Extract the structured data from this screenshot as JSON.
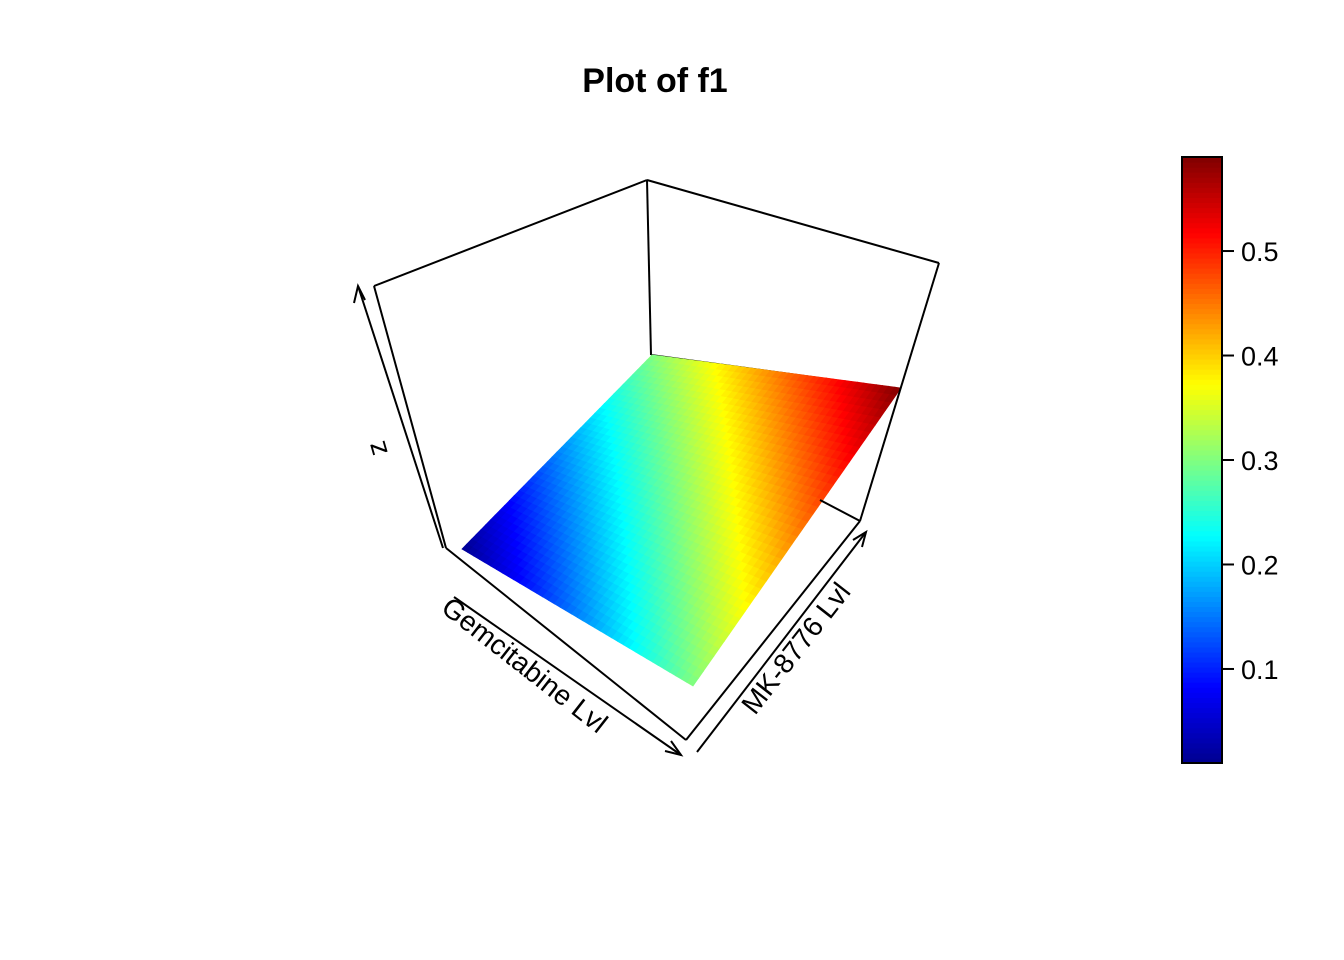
{
  "chart_data": {
    "type": "surface",
    "title": "Plot of f1",
    "x_axis_label": "Gemcitabine Lvl",
    "y_axis_label": "MK-8776 Lvl",
    "z_axis_label": "z",
    "surface": {
      "shape": "plane",
      "z_at_corners": {
        "x_min_y_min": 0.01,
        "x_min_y_max": 0.3,
        "x_max_y_min": 0.3,
        "x_max_y_max": 0.59
      },
      "z_range": [
        0.01,
        0.59
      ]
    },
    "colorbar": {
      "range": [
        0.01,
        0.59
      ],
      "ticks": [
        0.1,
        0.2,
        0.3,
        0.4,
        0.5
      ],
      "tick_labels": [
        "0.1",
        "0.2",
        "0.3",
        "0.4",
        "0.5"
      ],
      "palette": [
        "#00008F",
        "#0000FF",
        "#0080FF",
        "#00FFFF",
        "#80FF80",
        "#FFFF00",
        "#FF8000",
        "#FF0000",
        "#800000"
      ]
    }
  }
}
